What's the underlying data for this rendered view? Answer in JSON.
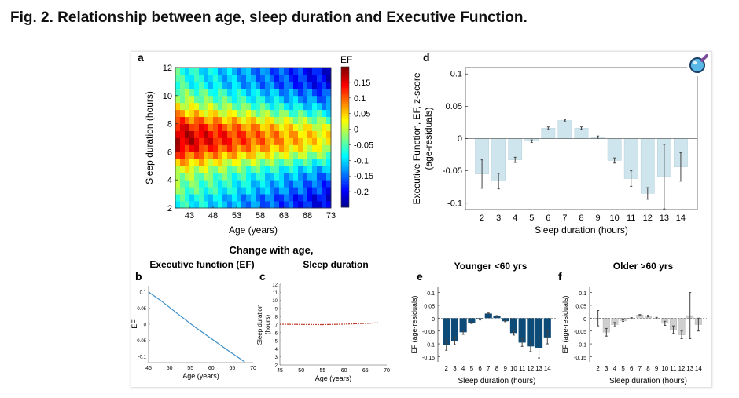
{
  "figure": {
    "title": "Fig. 2. Relationship between age, sleep duration and Executive Function."
  },
  "colors": {
    "d_bar": "#cfe5ed",
    "e_bar": "#0c4a78",
    "f_bar": "#cfcfcf",
    "c_line": "#c0392b",
    "b_line": "#3a8fc9",
    "zoom_fill": "#58b9e8"
  },
  "icons": {
    "zoom": "zoom-magnifier-icon"
  },
  "chart_data": [
    {
      "id": "a",
      "panel_label": "a",
      "type": "heatmap",
      "xlabel": "Age (years)",
      "ylabel": "Sleep duration (hours)",
      "x_ticks": [
        "43",
        "48",
        "53",
        "58",
        "63",
        "68",
        "73"
      ],
      "y_ticks": [
        "2",
        "4",
        "6",
        "8",
        "10",
        "12"
      ],
      "xlim": [
        40,
        73
      ],
      "ylim": [
        2,
        12
      ],
      "colorbar": {
        "title": "EF",
        "range": [
          -0.25,
          0.2
        ],
        "ticks": [
          "0.15",
          "0.1",
          "0.05",
          "0",
          "-0.05",
          "-0.1",
          "-0.15",
          "-0.2"
        ]
      }
    },
    {
      "id": "d",
      "panel_label": "d",
      "type": "bar",
      "xlabel": "Sleep duration (hours)",
      "ylabel_lines": [
        "Executive Function, EF, z-score",
        "(age-residuals)"
      ],
      "categories": [
        "2",
        "3",
        "4",
        "5",
        "6",
        "7",
        "8",
        "9",
        "10",
        "11",
        "12",
        "13",
        "14"
      ],
      "values": [
        -0.055,
        -0.066,
        -0.033,
        -0.004,
        0.016,
        0.028,
        0.016,
        0.002,
        -0.034,
        -0.062,
        -0.085,
        -0.059,
        -0.044
      ],
      "errors": [
        0.022,
        0.012,
        0.004,
        0.002,
        0.002,
        0.001,
        0.002,
        0.002,
        0.004,
        0.012,
        0.009,
        0.05,
        0.022
      ],
      "ylim": [
        -0.11,
        0.11
      ],
      "y_ticks": [
        "0.1",
        "0.05",
        "0",
        "-0.05",
        "-0.1"
      ]
    },
    {
      "id": "b",
      "panel_label": "b",
      "type": "line",
      "group_title": "Change with age,",
      "title": "Executive function (EF)",
      "xlabel": "Age (years)",
      "ylabel": "EF",
      "x": [
        45,
        48,
        52,
        56,
        60,
        64,
        68
      ],
      "y": [
        0.1,
        0.073,
        0.032,
        -0.008,
        -0.045,
        -0.082,
        -0.118
      ],
      "xlim": [
        45,
        70
      ],
      "ylim": [
        -0.12,
        0.12
      ],
      "x_ticks": [
        "45",
        "50",
        "55",
        "60",
        "65",
        "70"
      ],
      "y_ticks": [
        "0.1",
        "0.05",
        "0",
        "-0.05",
        "-0.1"
      ]
    },
    {
      "id": "c",
      "panel_label": "c",
      "type": "line",
      "title": "Sleep duration",
      "xlabel": "Age (years)",
      "ylabel_lines": [
        "Sleep duration",
        "(hours)"
      ],
      "x": [
        45,
        50,
        55,
        60,
        65,
        68
      ],
      "y": [
        7.05,
        7.02,
        7.0,
        7.05,
        7.15,
        7.22
      ],
      "xlim": [
        45,
        70
      ],
      "ylim": [
        2,
        12
      ],
      "x_ticks": [
        "45",
        "50",
        "55",
        "60",
        "65",
        "70"
      ],
      "y_ticks": [
        "2",
        "3",
        "4",
        "5",
        "6",
        "7",
        "8",
        "9",
        "10",
        "11",
        "12"
      ]
    },
    {
      "id": "e",
      "panel_label": "e",
      "type": "bar",
      "title": "Younger  <60 yrs",
      "xlabel": "Sleep duration (hours)",
      "ylabel": "EF (age-residuals)",
      "categories": [
        "2",
        "3",
        "4",
        "5",
        "6",
        "7",
        "8",
        "9",
        "10",
        "11",
        "12",
        "13",
        "14"
      ],
      "values": [
        -0.105,
        -0.088,
        -0.055,
        -0.018,
        -0.005,
        0.018,
        0.008,
        -0.012,
        -0.058,
        -0.095,
        -0.11,
        -0.115,
        -0.075
      ],
      "errors": [
        0.02,
        0.015,
        0.008,
        0.003,
        0.002,
        0.002,
        0.002,
        0.002,
        0.008,
        0.015,
        0.02,
        0.04,
        0.025
      ],
      "ylim": [
        -0.17,
        0.12
      ],
      "y_ticks": [
        "0.1",
        "0.05",
        "0",
        "-0.05",
        "-0.1",
        "-0.15"
      ]
    },
    {
      "id": "f",
      "panel_label": "f",
      "type": "bar",
      "title": "Older  >60 yrs",
      "xlabel": "Sleep duration (hours)",
      "ylabel": "EF (age-residuals)",
      "categories": [
        "2",
        "3",
        "4",
        "5",
        "6",
        "7",
        "8",
        "9",
        "10",
        "11",
        "12",
        "13",
        "14"
      ],
      "values": [
        0.0,
        -0.055,
        -0.025,
        -0.01,
        0.0,
        0.012,
        0.008,
        0.0,
        -0.02,
        -0.045,
        -0.065,
        0.01,
        -0.025
      ],
      "errors": [
        0.03,
        0.015,
        0.008,
        0.003,
        0.002,
        0.002,
        0.003,
        0.003,
        0.008,
        0.015,
        0.015,
        0.09,
        0.025
      ],
      "ylim": [
        -0.17,
        0.12
      ],
      "y_ticks": [
        "0.1",
        "0.05",
        "0",
        "-0.05",
        "-0.1",
        "-0.15"
      ]
    }
  ]
}
